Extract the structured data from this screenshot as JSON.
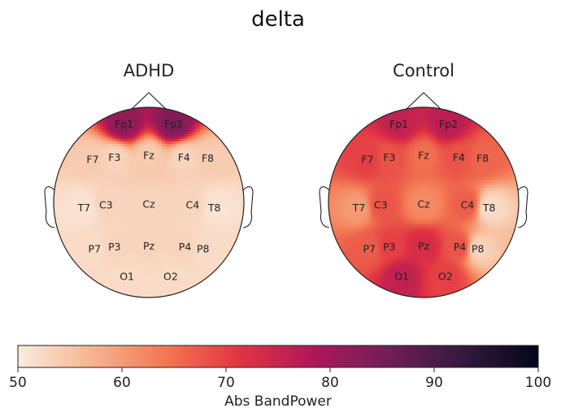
{
  "chart_data": {
    "type": "heatmap",
    "title": "delta",
    "colorbar": {
      "label": "Abs BandPower",
      "min": 50,
      "max": 100,
      "ticks": [
        50,
        60,
        70,
        80,
        90,
        100
      ],
      "colormap": [
        "#faebdd",
        "#f6b48f",
        "#f37651",
        "#e13342",
        "#ad1759",
        "#701f57",
        "#35193e",
        "#03051a"
      ]
    },
    "electrodes": [
      "Fp1",
      "Fp2",
      "F7",
      "F3",
      "Fz",
      "F4",
      "F8",
      "T7",
      "C3",
      "Cz",
      "C4",
      "T8",
      "P7",
      "P3",
      "Pz",
      "P4",
      "P8",
      "O1",
      "O2"
    ],
    "panels": [
      {
        "title": "ADHD",
        "values": {
          "Fp1": 82,
          "Fp2": 84,
          "F7": 54,
          "F3": 53,
          "Fz": 54,
          "F4": 53,
          "F8": 54,
          "T7": 51,
          "C3": 53,
          "Cz": 53,
          "C4": 53,
          "T8": 51,
          "P7": 52,
          "P3": 53,
          "Pz": 53,
          "P4": 53,
          "P8": 52,
          "O1": 52,
          "O2": 52
        }
      },
      {
        "title": "Control",
        "values": {
          "Fp1": 76,
          "Fp2": 77,
          "F7": 70,
          "F3": 68,
          "Fz": 65,
          "F4": 68,
          "F8": 66,
          "T7": 60,
          "C3": 68,
          "Cz": 62,
          "C4": 67,
          "T8": 52,
          "P7": 67,
          "P3": 70,
          "Pz": 73,
          "P4": 68,
          "P8": 53,
          "O1": 76,
          "O2": 70
        }
      }
    ]
  }
}
